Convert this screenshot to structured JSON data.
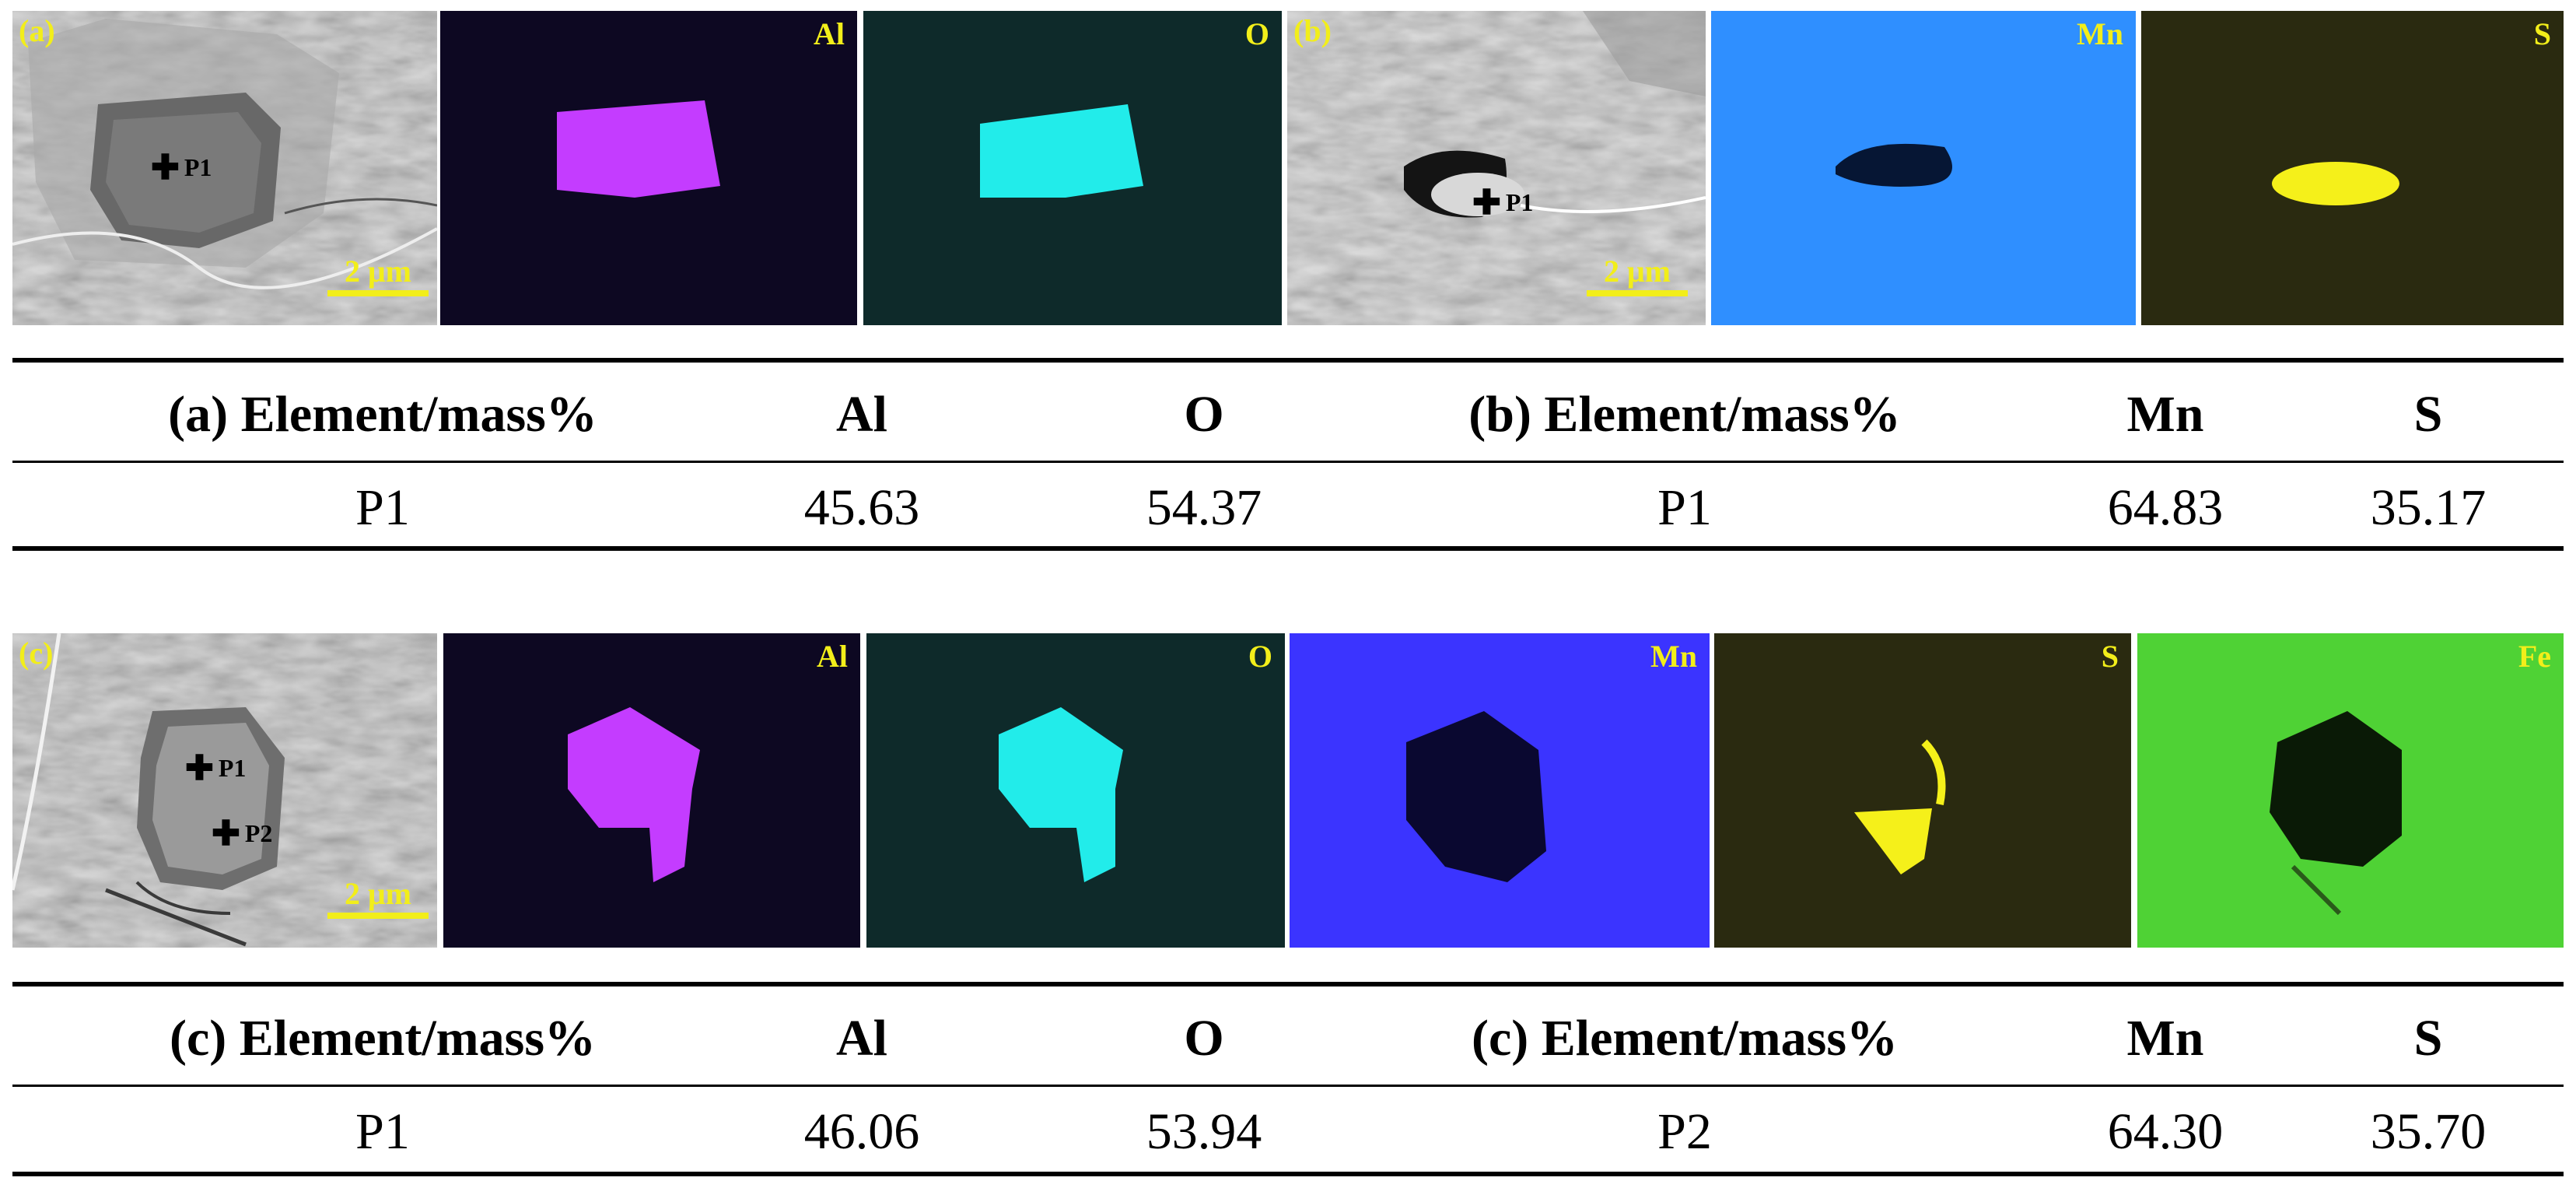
{
  "figure_top": {
    "sem_a": {
      "label": "(a)",
      "markers": [
        "P1"
      ],
      "scale": "2 μm"
    },
    "map_a_al": {
      "element": "Al",
      "color": "#c43cff"
    },
    "map_a_o": {
      "element": "O",
      "color": "#22ecea"
    },
    "sem_b": {
      "label": "(b)",
      "markers": [
        "P1"
      ],
      "scale": "2 μm"
    },
    "map_b_mn": {
      "element": "Mn",
      "color": "#2f8fff"
    },
    "map_b_s": {
      "element": "S",
      "color": "#f5f01a"
    }
  },
  "table_top": {
    "headers": [
      "(a) Element/mass%",
      "Al",
      "O",
      "(b) Element/mass%",
      "Mn",
      "S"
    ],
    "row": [
      "P1",
      "45.63",
      "54.37",
      "P1",
      "64.83",
      "35.17"
    ]
  },
  "figure_bottom": {
    "sem_c": {
      "label": "(c)",
      "markers": [
        "P1",
        "P2"
      ],
      "scale": "2 μm"
    },
    "map_c_al": {
      "element": "Al",
      "color": "#c43cff"
    },
    "map_c_o": {
      "element": "O",
      "color": "#22ecea"
    },
    "map_c_mn": {
      "element": "Mn",
      "color": "#3b34ff"
    },
    "map_c_s": {
      "element": "S",
      "color": "#f5f01a"
    },
    "map_c_fe": {
      "element": "Fe",
      "color": "#4fd235"
    }
  },
  "table_bottom": {
    "headers": [
      "(c) Element/mass%",
      "Al",
      "O",
      "(c) Element/mass%",
      "Mn",
      "S"
    ],
    "row": [
      "P1",
      "46.06",
      "53.94",
      "P2",
      "64.30",
      "35.70"
    ]
  }
}
